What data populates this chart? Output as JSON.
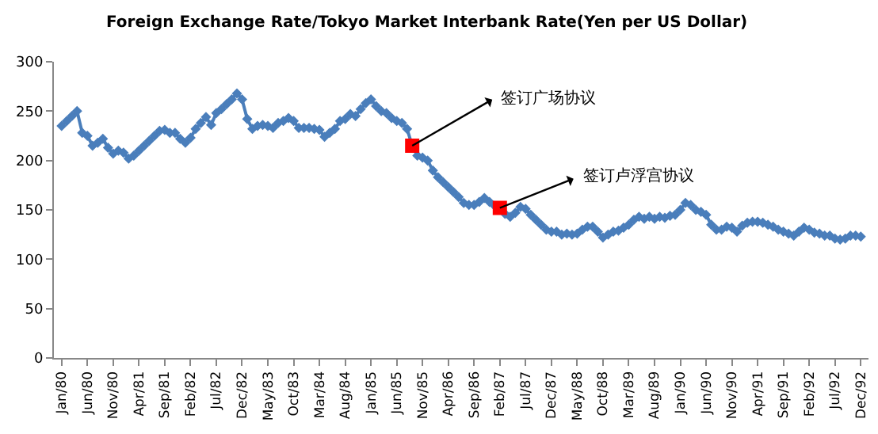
{
  "chart_data": {
    "type": "line",
    "title": "Foreign Exchange Rate/Tokyo Market Interbank Rate(Yen per US Dollar)",
    "categories": [
      "Jan/80",
      null,
      null,
      null,
      null,
      "Jun/80",
      null,
      null,
      null,
      null,
      "Nov/80",
      null,
      null,
      null,
      null,
      "Apr/81",
      null,
      null,
      null,
      null,
      "Sep/81",
      null,
      null,
      null,
      null,
      "Feb/82",
      null,
      null,
      null,
      null,
      "Jul/82",
      null,
      null,
      null,
      null,
      "Dec/82",
      null,
      null,
      null,
      null,
      "May/83",
      null,
      null,
      null,
      null,
      "Oct/83",
      null,
      null,
      null,
      null,
      "Mar/84",
      null,
      null,
      null,
      null,
      "Aug/84",
      null,
      null,
      null,
      null,
      "Jan/85",
      null,
      null,
      null,
      null,
      "Jun/85",
      null,
      null,
      null,
      null,
      "Nov/85",
      null,
      null,
      null,
      null,
      "Apr/86",
      null,
      null,
      null,
      null,
      "Sep/86",
      null,
      null,
      null,
      null,
      "Feb/87",
      null,
      null,
      null,
      null,
      "Jul/87",
      null,
      null,
      null,
      null,
      "Dec/87",
      null,
      null,
      null,
      null,
      "May/88",
      null,
      null,
      null,
      null,
      "Oct/88",
      null,
      null,
      null,
      null,
      "Mar/89",
      null,
      null,
      null,
      null,
      "Aug/89",
      null,
      null,
      null,
      null,
      "Jan/90",
      null,
      null,
      null,
      null,
      "Jun/90",
      null,
      null,
      null,
      null,
      "Nov/90",
      null,
      null,
      null,
      null,
      "Apr/91",
      null,
      null,
      null,
      null,
      "Sep/91",
      null,
      null,
      null,
      null,
      "Feb/92",
      null,
      null,
      null,
      null,
      "Jul/92",
      null,
      null,
      null,
      null,
      "Dec/92"
    ],
    "series": [
      {
        "color": "#4a7ebb",
        "marker": "diamond",
        "values": [
          235,
          240,
          245,
          250,
          228,
          225,
          215,
          218,
          222,
          213,
          207,
          210,
          208,
          202,
          205,
          210,
          215,
          220,
          225,
          230,
          231,
          228,
          228,
          222,
          218,
          223,
          232,
          238,
          244,
          236,
          248,
          252,
          257,
          262,
          268,
          262,
          242,
          232,
          235,
          236,
          235,
          233,
          238,
          240,
          243,
          240,
          233,
          233,
          233,
          232,
          231,
          224,
          228,
          232,
          240,
          242,
          247,
          245,
          252,
          258,
          262,
          255,
          250,
          248,
          243,
          240,
          238,
          232,
          215,
          205,
          203,
          200,
          190,
          183,
          178,
          173,
          168,
          163,
          157,
          155,
          155,
          158,
          162,
          158,
          154,
          152,
          146,
          143,
          147,
          153,
          151,
          145,
          140,
          135,
          130,
          128,
          128,
          125,
          126,
          125,
          126,
          130,
          133,
          133,
          128,
          122,
          125,
          128,
          129,
          132,
          135,
          140,
          143,
          141,
          143,
          141,
          143,
          142,
          144,
          145,
          150,
          157,
          155,
          150,
          148,
          145,
          135,
          130,
          130,
          133,
          132,
          128,
          134,
          137,
          138,
          138,
          137,
          135,
          133,
          130,
          128,
          126,
          124,
          128,
          132,
          130,
          127,
          126,
          124,
          124,
          121,
          120,
          121,
          124,
          124,
          123
        ]
      },
      {
        "type": "scatter",
        "color": "#ff0000",
        "marker": "square",
        "values": [
          null,
          null,
          null,
          null,
          null,
          null,
          null,
          null,
          null,
          null,
          null,
          null,
          null,
          null,
          null,
          null,
          null,
          null,
          null,
          null,
          null,
          null,
          null,
          null,
          null,
          null,
          null,
          null,
          null,
          null,
          null,
          null,
          null,
          null,
          null,
          null,
          null,
          null,
          null,
          null,
          null,
          null,
          null,
          null,
          null,
          null,
          null,
          null,
          null,
          null,
          null,
          null,
          null,
          null,
          null,
          null,
          null,
          null,
          null,
          null,
          null,
          null,
          null,
          null,
          null,
          null,
          null,
          null,
          215,
          null,
          null,
          null,
          null,
          null,
          null,
          null,
          null,
          null,
          null,
          null,
          null,
          null,
          null,
          null,
          null,
          152,
          null,
          null,
          null,
          null,
          null,
          null,
          null,
          null,
          null,
          null,
          null,
          null,
          null,
          null,
          null,
          null,
          null,
          null,
          null,
          null,
          null,
          null,
          null,
          null,
          null,
          null,
          null,
          null,
          null,
          null,
          null,
          null,
          null,
          null,
          null,
          null,
          null,
          null,
          null,
          null,
          null,
          null,
          null,
          null,
          null,
          null,
          null,
          null,
          null,
          null,
          null,
          null,
          null,
          null,
          null,
          null,
          null,
          null,
          null,
          null,
          null,
          null,
          null,
          null,
          null,
          null,
          null,
          null,
          null,
          null
        ]
      }
    ],
    "annotations": [
      "签订广场协议",
      {
        "text": "签订卢浮宫协议",
        "y": 152
      }
    ],
    "ylim": [
      0,
      300
    ],
    "yticks": [
      0,
      50,
      100,
      150,
      200,
      250,
      300
    ],
    "grid": false,
    "legend": false
  }
}
